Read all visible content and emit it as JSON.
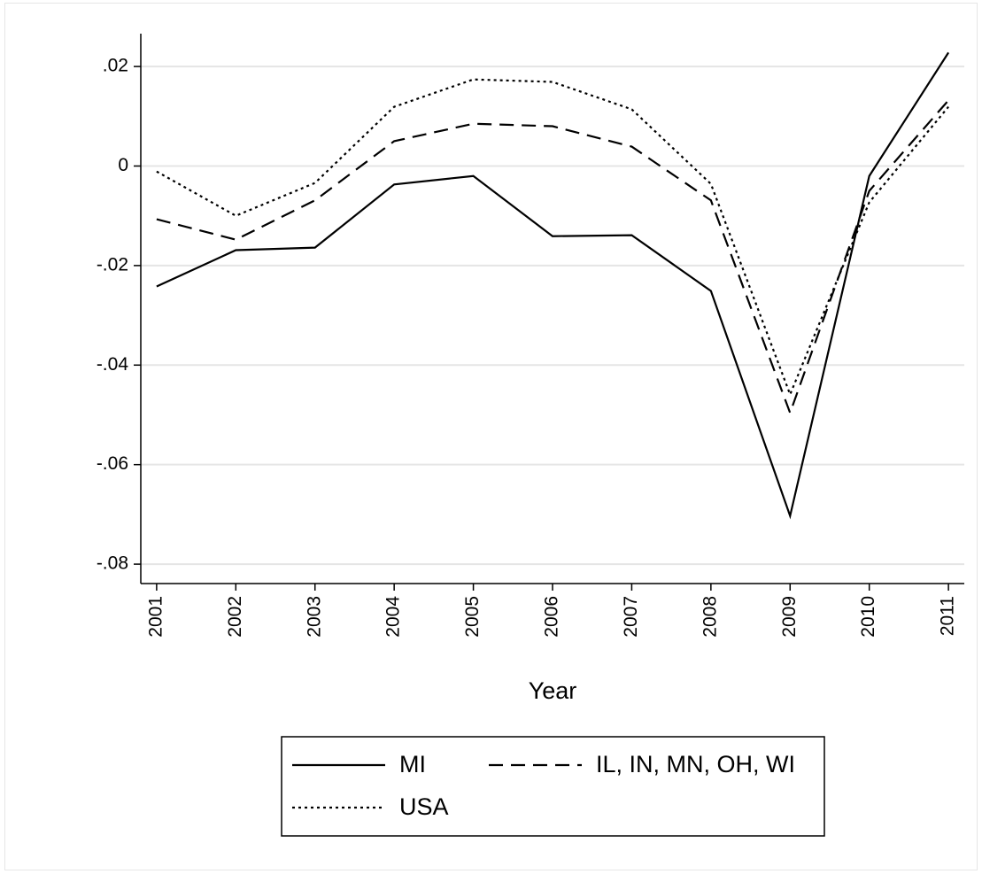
{
  "chart_data": {
    "type": "line",
    "x_label": "Year",
    "x": [
      2001,
      2002,
      2003,
      2004,
      2005,
      2006,
      2007,
      2008,
      2009,
      2010,
      2011
    ],
    "xlim": [
      2000.8,
      2011.2
    ],
    "xticks": [
      2001,
      2002,
      2003,
      2004,
      2005,
      2006,
      2007,
      2008,
      2009,
      2010,
      2011
    ],
    "ylim": [
      -0.0839,
      0.0266
    ],
    "yticks": [
      {
        "value": -0.08,
        "label": "-.08"
      },
      {
        "value": -0.06,
        "label": "-.06"
      },
      {
        "value": -0.04,
        "label": "-.04"
      },
      {
        "value": -0.02,
        "label": "-.02"
      },
      0,
      {
        "value": 0.02,
        "label": ".02"
      }
    ],
    "grid": true,
    "legend": "bottom",
    "series": [
      {
        "name": "MI",
        "color": "#000000",
        "style": "solid",
        "values": [
          -0.0242,
          -0.0169,
          -0.0164,
          -0.0037,
          -0.002,
          -0.0141,
          -0.0139,
          -0.0251,
          -0.0703,
          -0.002,
          0.0228
        ]
      },
      {
        "name": "IL, IN, MN, OH, WI",
        "color": "#000000",
        "style": "dashed",
        "values": [
          -0.0107,
          -0.0148,
          -0.0069,
          0.005,
          0.0085,
          0.008,
          0.0039,
          -0.0069,
          -0.0496,
          -0.005,
          0.0132
        ]
      },
      {
        "name": "USA",
        "color": "#000000",
        "style": "dotted",
        "values": [
          -0.0011,
          -0.01,
          -0.0034,
          0.0119,
          0.0174,
          0.0169,
          0.0114,
          -0.0036,
          -0.0459,
          -0.0073,
          0.0119
        ]
      }
    ]
  }
}
